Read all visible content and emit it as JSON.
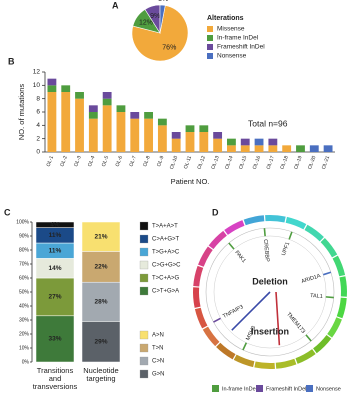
{
  "chart_data": [
    {
      "type": "pie",
      "panel": "A",
      "legend_title": "Alterations",
      "categories": [
        "Missense",
        "In-frame InDel",
        "Frameshift InDel",
        "Nonsense"
      ],
      "values": [
        76,
        12,
        9,
        3
      ],
      "value_labels": [
        "76%",
        "12%",
        "9%",
        "3%"
      ],
      "colors": [
        "#f2a93b",
        "#4f9d3f",
        "#6a4a9c",
        "#4a6fc0"
      ]
    },
    {
      "type": "bar",
      "panel": "B",
      "stacked": true,
      "annotation": "Total n=96",
      "x_label": "Patient NO.",
      "y_label": "NO. of mutations",
      "categories": [
        "OL-1",
        "OL-2",
        "OL-3",
        "OL-4",
        "OL-5",
        "OL-6",
        "OL-7",
        "OL-8",
        "OL-9",
        "OL-10",
        "OL-11",
        "OL-12",
        "OL-13",
        "OL-14",
        "OL-15",
        "OL-16",
        "OL-17",
        "OL-18",
        "OL-19",
        "OL-20",
        "OL-21"
      ],
      "series": [
        {
          "color": "#f2a93b",
          "values": [
            9,
            9,
            8,
            5,
            7,
            6,
            5,
            5,
            4,
            2,
            3,
            3,
            2,
            1,
            1,
            1,
            1,
            1,
            0,
            0,
            0
          ]
        },
        {
          "color": "#4f9d3f",
          "values": [
            1,
            1,
            1,
            1,
            1,
            1,
            0,
            1,
            1,
            0,
            1,
            1,
            0,
            1,
            0,
            0,
            0,
            0,
            1,
            0,
            0
          ]
        },
        {
          "color": "#6a4a9c",
          "values": [
            1,
            0,
            0,
            1,
            1,
            0,
            1,
            0,
            0,
            1,
            0,
            0,
            1,
            0,
            1,
            0,
            1,
            0,
            0,
            0,
            0
          ]
        },
        {
          "color": "#4a6fc0",
          "values": [
            0,
            0,
            0,
            0,
            0,
            0,
            0,
            0,
            0,
            0,
            0,
            0,
            0,
            0,
            0,
            1,
            0,
            0,
            0,
            1,
            1
          ]
        }
      ],
      "ylim": [
        0,
        12
      ],
      "yticks": [
        0,
        2,
        4,
        6,
        8,
        10,
        12
      ]
    },
    {
      "type": "stacked_percent",
      "panel": "C",
      "ylim": [
        0,
        100
      ],
      "yticks": [
        {
          "value": 0,
          "label": "0%"
        },
        {
          "value": 10,
          "label": "10%"
        },
        {
          "value": 20,
          "label": "20%"
        },
        {
          "value": 30,
          "label": "30%"
        },
        {
          "value": 40,
          "label": "40%"
        },
        {
          "value": 50,
          "label": "50%"
        },
        {
          "value": 60,
          "label": "60%"
        },
        {
          "value": 70,
          "label": "70%"
        },
        {
          "value": 80,
          "label": "80%"
        },
        {
          "value": 90,
          "label": "90%"
        },
        {
          "value": 100,
          "label": "100%"
        }
      ],
      "bars": [
        {
          "label_lines": [
            "Transitions",
            "and",
            "transversions"
          ],
          "segments": [
            {
              "name": "C>T+G>A",
              "color": "#3e7a3a",
              "value": 33,
              "value_label": "33%"
            },
            {
              "name": "T>C+A>G",
              "color": "#7c9a3a",
              "value": 27,
              "value_label": "27%"
            },
            {
              "name": "C>G+G>C",
              "color": "#e6eadc",
              "value": 14,
              "value_label": "14%"
            },
            {
              "name": "T>G+A>C",
              "color": "#4aa6d6",
              "value": 11,
              "value_label": "11%"
            },
            {
              "name": "C>A+G>T",
              "color": "#1b4a88",
              "value": 11,
              "value_label": "11%"
            },
            {
              "name": "T>A+A>T",
              "color": "#111111",
              "value": 4,
              "value_label": "4%"
            }
          ]
        },
        {
          "label_lines": [
            "Nucleotide",
            "targeting"
          ],
          "segments": [
            {
              "name": "G>N",
              "color": "#5b6168",
              "value": 29,
              "value_label": "29%"
            },
            {
              "name": "C>N",
              "color": "#a2a9b0",
              "value": 28,
              "value_label": "28%"
            },
            {
              "name": "T>N",
              "color": "#c9a870",
              "value": 22,
              "value_label": "22%"
            },
            {
              "name": "A>N",
              "color": "#f8e070",
              "value": 21,
              "value_label": "21%"
            }
          ]
        }
      ]
    }
  ],
  "diagram": {
    "panel": "D",
    "center_labels": [
      "Deletion",
      "Insertion"
    ],
    "genes": [
      "PAK1",
      "CREBBP",
      "UPF1",
      "ARID1A",
      "TAL1",
      "TMEM173",
      "MSH3",
      "TNFAIP3"
    ],
    "legend": [
      "In-frame InDel",
      "Frameshift InDel",
      "Nonsense"
    ]
  }
}
